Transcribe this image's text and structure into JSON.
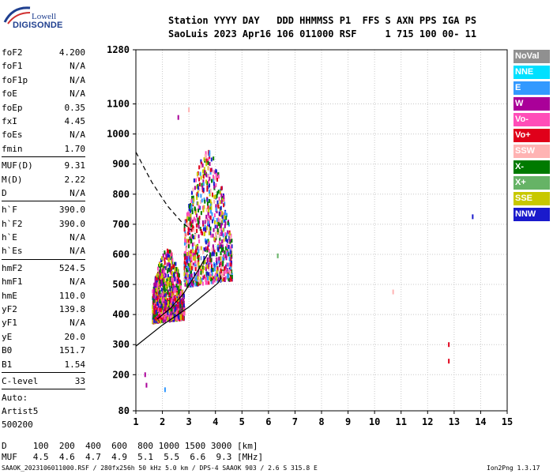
{
  "logo": {
    "top": "Lowell",
    "bottom": "DIGISONDE"
  },
  "header": {
    "line1": "Station YYYY DAY   DDD HHMMSS P1  FFS S AXN PPS IGA PS",
    "line2": "SaoLuis 2023 Apr16 106 011000 RSF     1 715 100 00- 11"
  },
  "params_group1": [
    {
      "k": "foF2",
      "v": "4.200"
    },
    {
      "k": "foF1",
      "v": "N/A"
    },
    {
      "k": "foF1p",
      "v": "N/A"
    },
    {
      "k": "foE",
      "v": "N/A"
    },
    {
      "k": "foEp",
      "v": "0.35"
    },
    {
      "k": "fxI",
      "v": "4.45"
    },
    {
      "k": "foEs",
      "v": "N/A"
    },
    {
      "k": "fmin",
      "v": "1.70"
    }
  ],
  "params_group2": [
    {
      "k": "MUF(D)",
      "v": "9.31"
    },
    {
      "k": "M(D)",
      "v": "2.22"
    },
    {
      "k": "D",
      "v": "N/A"
    }
  ],
  "params_group3": [
    {
      "k": "h`F",
      "v": "390.0"
    },
    {
      "k": "h`F2",
      "v": "390.0"
    },
    {
      "k": "h`E",
      "v": "N/A"
    },
    {
      "k": "h`Es",
      "v": "N/A"
    }
  ],
  "params_group4": [
    {
      "k": "hmF2",
      "v": "524.5"
    },
    {
      "k": "hmF1",
      "v": "N/A"
    },
    {
      "k": "hmE",
      "v": "110.0"
    },
    {
      "k": "yF2",
      "v": "139.8"
    },
    {
      "k": "yF1",
      "v": "N/A"
    },
    {
      "k": "yE",
      "v": "20.0"
    },
    {
      "k": "B0",
      "v": "151.7"
    },
    {
      "k": "B1",
      "v": "1.54"
    }
  ],
  "clevel": {
    "k": "C-level",
    "v": "33"
  },
  "auto_lines": [
    "Auto:",
    "Artist5",
    "500200"
  ],
  "legend": [
    {
      "label": "NoVal",
      "color": "#909090"
    },
    {
      "label": "NNE",
      "color": "#00e0ff"
    },
    {
      "label": "E",
      "color": "#3399ff"
    },
    {
      "label": "W",
      "color": "#aa0099"
    },
    {
      "label": "Vo-",
      "color": "#ff4db8"
    },
    {
      "label": "Vo+",
      "color": "#e0001a"
    },
    {
      "label": "SSW",
      "color": "#ffb3b3"
    },
    {
      "label": "X-",
      "color": "#007a00"
    },
    {
      "label": "X+",
      "color": "#66b366"
    },
    {
      "label": "SSE",
      "color": "#c8c800"
    },
    {
      "label": "NNW",
      "color": "#1a1acc"
    }
  ],
  "bottom": {
    "d_line": "D     100  200  400  600  800 1000 1500 3000 [km]",
    "muf_line": "MUF   4.5  4.6  4.7  4.9  5.1  5.5  6.6  9.3 [MHz]",
    "footer_left": "SAAOK_2023106011000.RSF / 280fx256h 50 kHz 5.0 km / DPS-4 SAAOK 903 / 2.6 S 315.8 E",
    "footer_right": "Ion2Png 1.3.17"
  },
  "chart_data": {
    "type": "scatter",
    "xlim": [
      1,
      15
    ],
    "ylim": [
      80,
      1280
    ],
    "x_ticks": [
      1,
      2,
      3,
      4,
      5,
      6,
      7,
      8,
      9,
      10,
      11,
      12,
      13,
      14,
      15
    ],
    "y_ticks": [
      80,
      200,
      300,
      400,
      500,
      600,
      700,
      800,
      900,
      1000,
      1100,
      1280
    ],
    "grid": true,
    "clusters": [
      {
        "name": "F2 trace main",
        "x": [
          2.8,
          4.6
        ],
        "y": [
          500,
          950
        ],
        "colors": [
          "#aa0099",
          "#ff4db8",
          "#e0001a",
          "#3399ff",
          "#007a00",
          "#c8c800",
          "#1a1acc",
          "#ffb3b3"
        ]
      },
      {
        "name": "F2 lower",
        "x": [
          1.6,
          2.8
        ],
        "y": [
          380,
          620
        ],
        "colors": [
          "#aa0099",
          "#ff4db8",
          "#c8c800",
          "#1a1acc",
          "#007a00",
          "#e0001a"
        ]
      }
    ],
    "profile_lines": [
      {
        "style": "solid",
        "x": [
          1.0,
          2.0,
          3.0,
          3.7,
          4.1,
          4.2,
          4.19
        ],
        "y": [
          295,
          365,
          425,
          475,
          505,
          520,
          530
        ]
      },
      {
        "style": "solid",
        "x": [
          1.8,
          2.3,
          2.8,
          3.3,
          3.7
        ],
        "y": [
          385,
          420,
          470,
          540,
          600
        ]
      },
      {
        "style": "dashed",
        "x": [
          1.0,
          1.6,
          2.2,
          2.7,
          3.1
        ],
        "y": [
          940,
          840,
          760,
          710,
          680
        ]
      }
    ],
    "isolated_points": [
      {
        "x": 12.8,
        "y": 300,
        "color": "#e0001a"
      },
      {
        "x": 12.8,
        "y": 245,
        "color": "#e0001a"
      },
      {
        "x": 13.7,
        "y": 725,
        "color": "#1a1acc"
      },
      {
        "x": 6.35,
        "y": 595,
        "color": "#66b366"
      },
      {
        "x": 10.7,
        "y": 475,
        "color": "#ffb3b3"
      },
      {
        "x": 2.1,
        "y": 150,
        "color": "#3399ff"
      },
      {
        "x": 1.35,
        "y": 200,
        "color": "#aa0099"
      },
      {
        "x": 1.4,
        "y": 165,
        "color": "#aa0099"
      },
      {
        "x": 2.6,
        "y": 1055,
        "color": "#aa0099"
      },
      {
        "x": 3.0,
        "y": 1080,
        "color": "#ffb3b3"
      }
    ]
  }
}
